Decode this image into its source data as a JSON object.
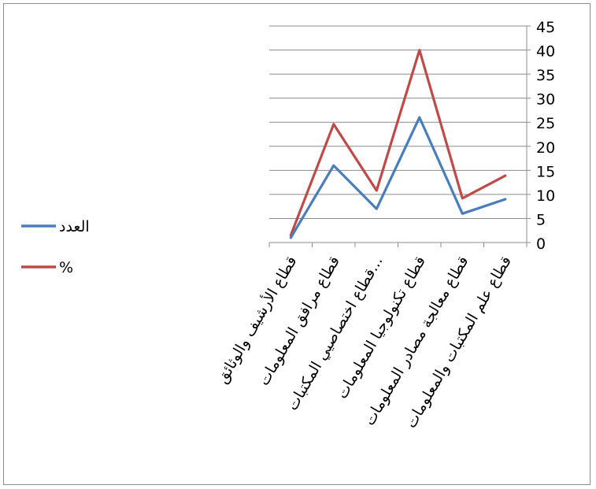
{
  "chart_data": {
    "type": "line",
    "categories": [
      "قطاع الأرشيف والوثائق",
      "قطاع مرافق المعلومات",
      "قطاع اختصاصيي المكتبات...",
      "قطاع تكنولوجيا المعلومات",
      "قطاع معالجة مصادر المعلومات",
      "قطاع علم المكتبات والمعلومات"
    ],
    "series": [
      {
        "name": "العدد",
        "values": [
          1,
          16,
          7,
          26,
          6,
          9
        ],
        "color": "#4a7ebb"
      },
      {
        "name": "%",
        "values": [
          1.5,
          24.6,
          10.8,
          40.0,
          9.2,
          13.9
        ],
        "color": "#be4b48"
      }
    ],
    "ylim": [
      0,
      45
    ],
    "yticks": [
      "0",
      "5",
      "10",
      "15",
      "20",
      "25",
      "30",
      "35",
      "40",
      "45"
    ],
    "y_axis_side": "right",
    "x_order": "reversed",
    "grid": true,
    "legend_position": "left"
  }
}
